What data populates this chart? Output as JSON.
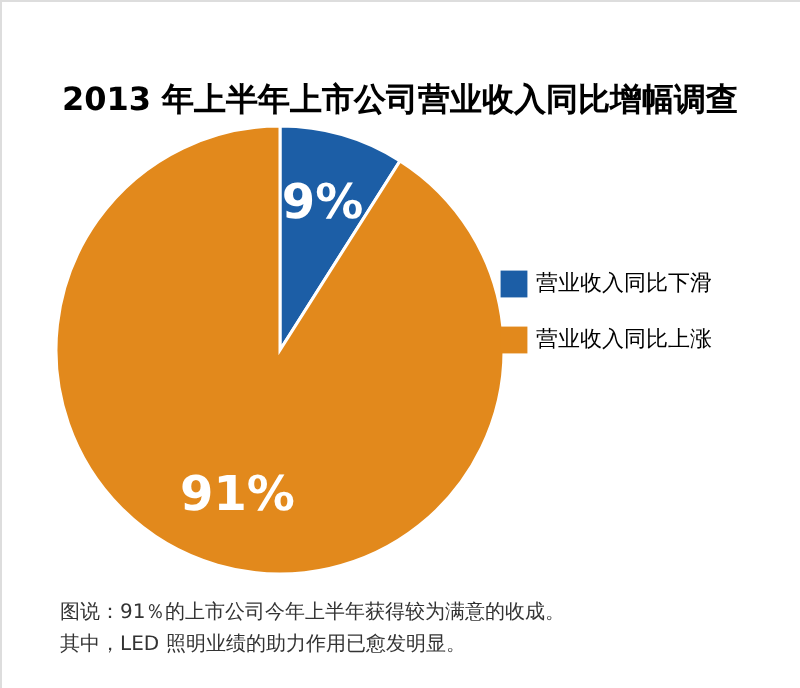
{
  "chart_data": {
    "type": "pie",
    "title": "2013 年上半年上市公司营业收入同比增幅调查",
    "categories": [
      "营业收入同比下滑",
      "营业收入同比上涨"
    ],
    "values": [
      9,
      91
    ],
    "colors": [
      "#1c5ea6",
      "#e2891c"
    ],
    "value_labels": [
      "9%",
      "91%"
    ],
    "legend": "right",
    "annotations": [
      "图说：91％的上市公司今年上半年获得较为满意的收成。",
      "其中，LED 照明业绩的助力作用已愈发明显。"
    ]
  }
}
